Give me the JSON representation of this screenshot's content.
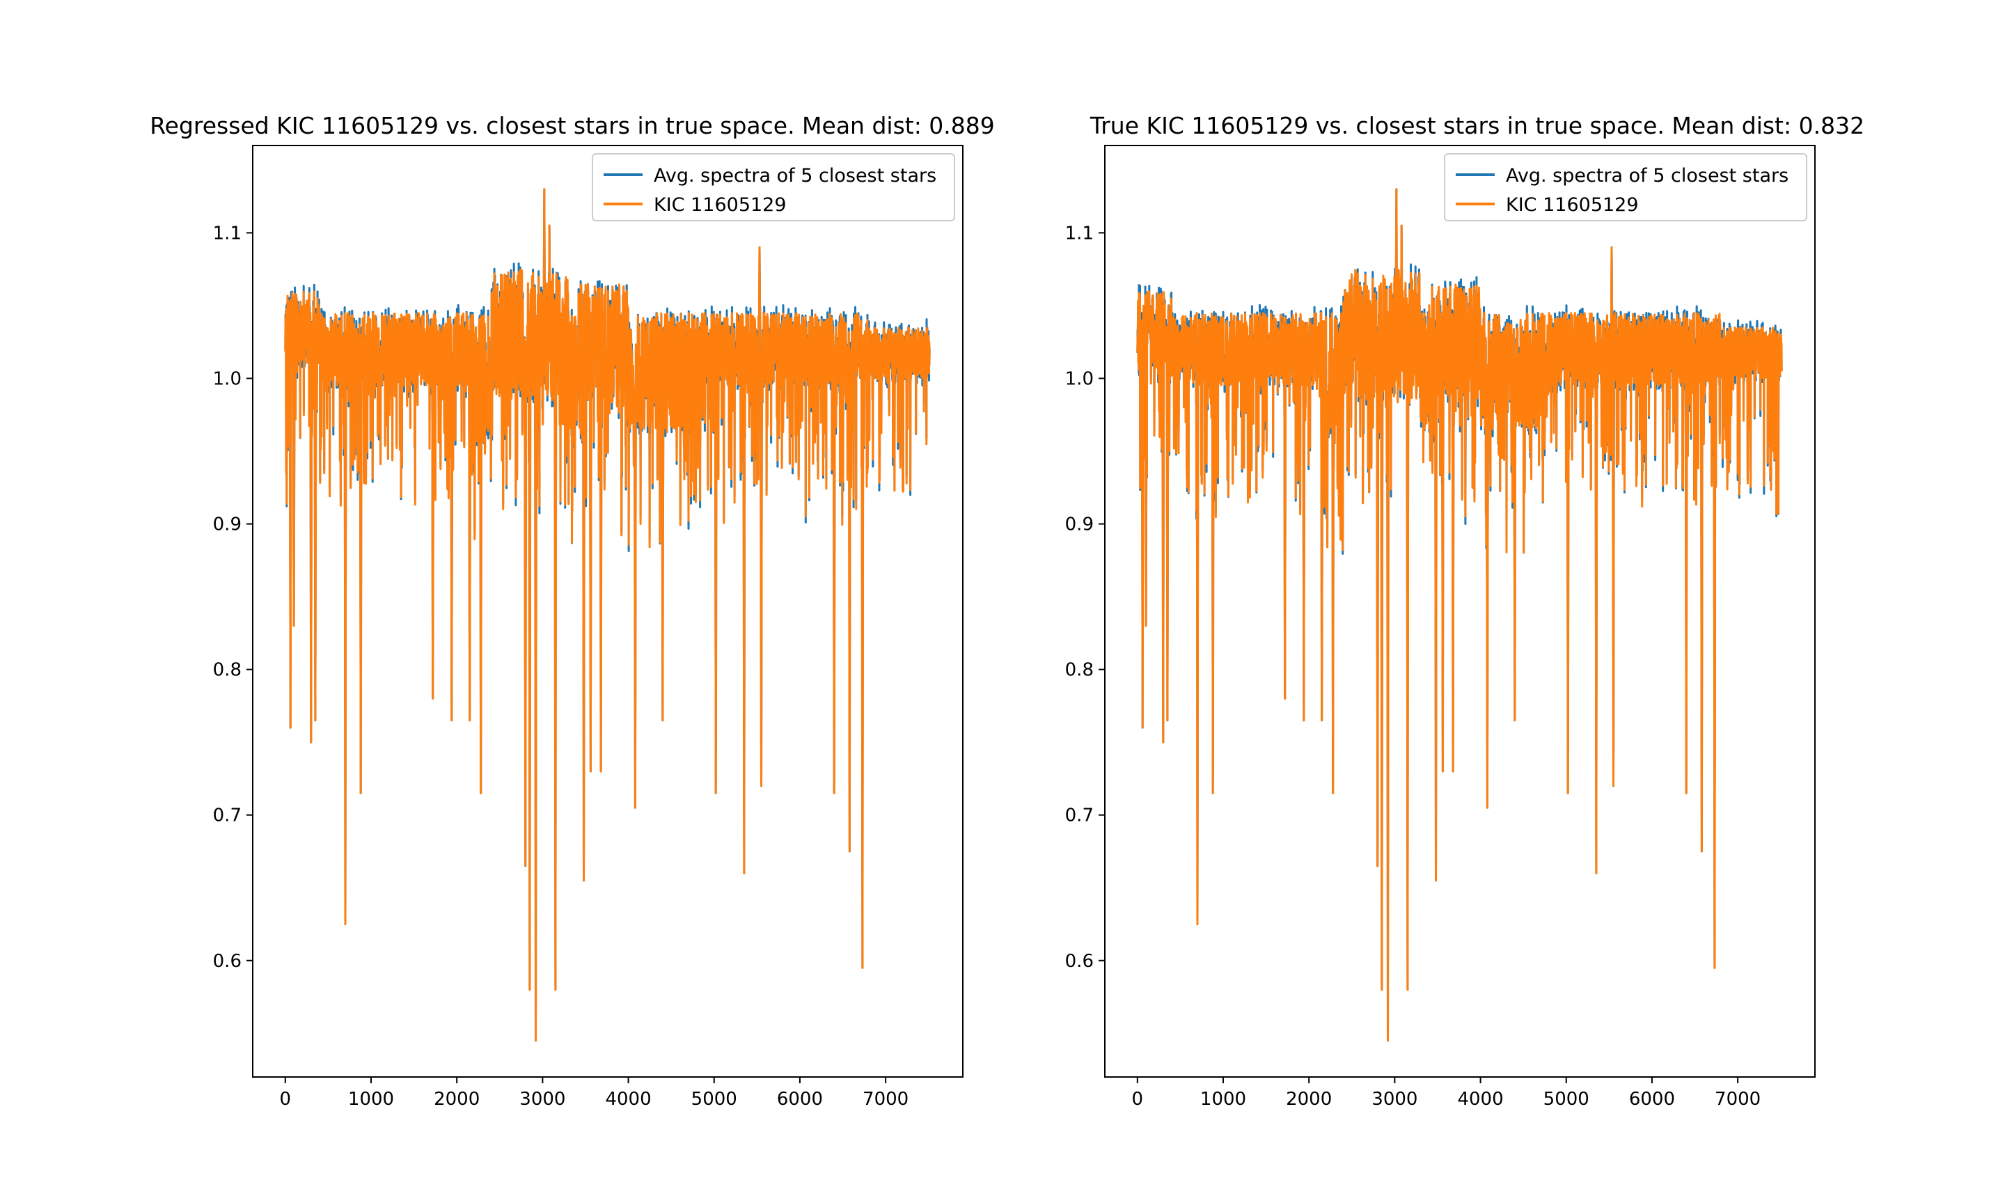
{
  "chart_data": [
    {
      "type": "line",
      "title": "Regressed KIC 11605129 vs. closest stars in true space. Mean dist: 0.889",
      "xlabel": "",
      "ylabel": "",
      "xlim": [
        -380,
        7900
      ],
      "ylim": [
        0.52,
        1.16
      ],
      "xticks": [
        0,
        1000,
        2000,
        3000,
        4000,
        5000,
        6000,
        7000
      ],
      "yticks": [
        0.6,
        0.7,
        0.8,
        0.9,
        1.0,
        1.1
      ],
      "ytick_labels": [
        "0.6",
        "0.7",
        "0.8",
        "0.9",
        "1.0",
        "1.1"
      ],
      "grid": false,
      "legend_position": "top-right",
      "n_points": 7514,
      "series": [
        {
          "name": "Avg. spectra of 5 closest stars",
          "color": "#1f77b4",
          "continuum": 1.0,
          "range": [
            0.55,
            1.13
          ]
        },
        {
          "name": "KIC 11605129",
          "color": "#ff7f0e",
          "continuum": 1.0,
          "range": [
            0.545,
            1.13
          ]
        }
      ],
      "absorption_lines": [
        {
          "x": 60,
          "min": 0.76
        },
        {
          "x": 100,
          "min": 0.83
        },
        {
          "x": 300,
          "min": 0.75
        },
        {
          "x": 350,
          "min": 0.765
        },
        {
          "x": 700,
          "min": 0.625
        },
        {
          "x": 880,
          "min": 0.715
        },
        {
          "x": 1720,
          "min": 0.78
        },
        {
          "x": 1940,
          "min": 0.765
        },
        {
          "x": 2150,
          "min": 0.765
        },
        {
          "x": 2280,
          "min": 0.715
        },
        {
          "x": 2800,
          "min": 0.665
        },
        {
          "x": 2850,
          "min": 0.58
        },
        {
          "x": 2920,
          "min": 0.545
        },
        {
          "x": 3150,
          "min": 0.58
        },
        {
          "x": 3480,
          "min": 0.655
        },
        {
          "x": 3560,
          "min": 0.73
        },
        {
          "x": 3680,
          "min": 0.73
        },
        {
          "x": 4080,
          "min": 0.705
        },
        {
          "x": 4400,
          "min": 0.765
        },
        {
          "x": 5020,
          "min": 0.715
        },
        {
          "x": 5350,
          "min": 0.66
        },
        {
          "x": 5550,
          "min": 0.72
        },
        {
          "x": 6400,
          "min": 0.715
        },
        {
          "x": 6580,
          "min": 0.675
        },
        {
          "x": 6730,
          "min": 0.595
        }
      ],
      "emission_peaks": [
        {
          "x": 3020,
          "max": 1.13
        },
        {
          "x": 3080,
          "max": 1.105
        },
        {
          "x": 5530,
          "max": 1.09
        }
      ]
    },
    {
      "type": "line",
      "title": "True KIC 11605129 vs. closest stars in true space. Mean dist: 0.832",
      "xlabel": "",
      "ylabel": "",
      "xlim": [
        -380,
        7900
      ],
      "ylim": [
        0.52,
        1.16
      ],
      "xticks": [
        0,
        1000,
        2000,
        3000,
        4000,
        5000,
        6000,
        7000
      ],
      "yticks": [
        0.6,
        0.7,
        0.8,
        0.9,
        1.0,
        1.1
      ],
      "ytick_labels": [
        "0.6",
        "0.7",
        "0.8",
        "0.9",
        "1.0",
        "1.1"
      ],
      "grid": false,
      "legend_position": "top-right",
      "n_points": 7514,
      "series": [
        {
          "name": "Avg. spectra of 5 closest stars",
          "color": "#1f77b4",
          "continuum": 1.0,
          "range": [
            0.58,
            1.13
          ]
        },
        {
          "name": "KIC 11605129",
          "color": "#ff7f0e",
          "continuum": 1.0,
          "range": [
            0.545,
            1.13
          ]
        }
      ],
      "absorption_lines": [
        {
          "x": 60,
          "min": 0.76
        },
        {
          "x": 100,
          "min": 0.83
        },
        {
          "x": 300,
          "min": 0.75
        },
        {
          "x": 350,
          "min": 0.765
        },
        {
          "x": 700,
          "min": 0.625
        },
        {
          "x": 880,
          "min": 0.715
        },
        {
          "x": 1720,
          "min": 0.78
        },
        {
          "x": 1940,
          "min": 0.765
        },
        {
          "x": 2150,
          "min": 0.765
        },
        {
          "x": 2280,
          "min": 0.715
        },
        {
          "x": 2800,
          "min": 0.665
        },
        {
          "x": 2850,
          "min": 0.58
        },
        {
          "x": 2920,
          "min": 0.545
        },
        {
          "x": 3150,
          "min": 0.58
        },
        {
          "x": 3480,
          "min": 0.655
        },
        {
          "x": 3560,
          "min": 0.73
        },
        {
          "x": 3680,
          "min": 0.73
        },
        {
          "x": 4080,
          "min": 0.705
        },
        {
          "x": 4400,
          "min": 0.765
        },
        {
          "x": 5020,
          "min": 0.715
        },
        {
          "x": 5350,
          "min": 0.66
        },
        {
          "x": 5550,
          "min": 0.72
        },
        {
          "x": 6400,
          "min": 0.715
        },
        {
          "x": 6580,
          "min": 0.675
        },
        {
          "x": 6730,
          "min": 0.595
        }
      ],
      "emission_peaks": [
        {
          "x": 3020,
          "max": 1.13
        },
        {
          "x": 3080,
          "max": 1.105
        },
        {
          "x": 5530,
          "max": 1.09
        }
      ]
    }
  ]
}
